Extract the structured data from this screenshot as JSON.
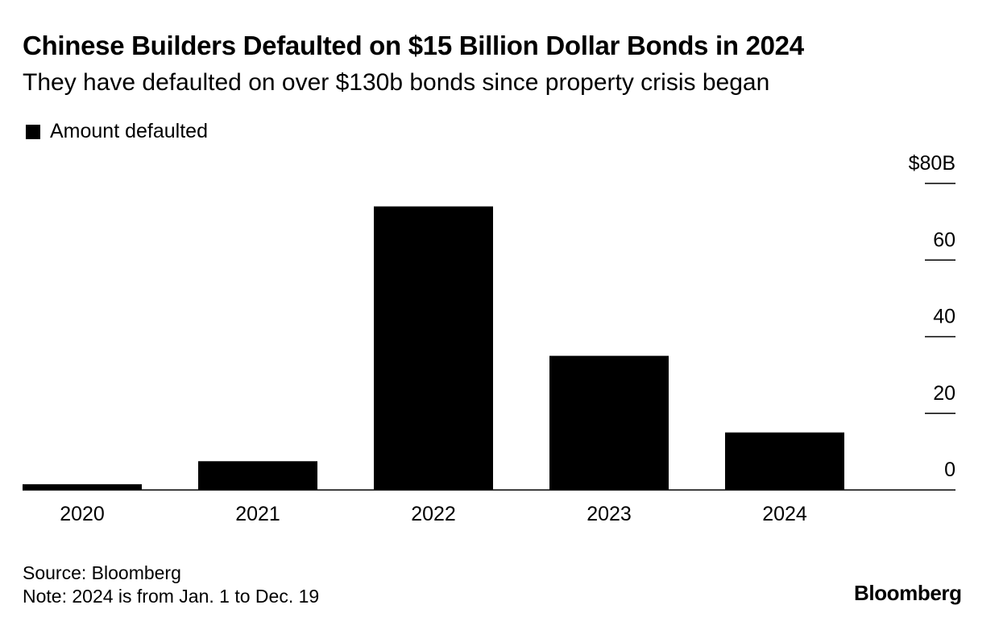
{
  "chart_data": {
    "type": "bar",
    "title": "Chinese Builders Defaulted on $15 Billion Dollar Bonds in 2024",
    "subtitle": "They have defaulted on over $130b bonds since property crisis began",
    "legend": {
      "placement": "top-left",
      "entries": [
        "Amount defaulted"
      ]
    },
    "categories": [
      "2020",
      "2021",
      "2022",
      "2023",
      "2024"
    ],
    "series": [
      {
        "name": "Amount defaulted",
        "values": [
          1.5,
          7.5,
          74,
          35,
          15
        ]
      }
    ],
    "ylim": [
      0,
      80
    ],
    "yticks": [
      0,
      20,
      40,
      60,
      80
    ],
    "ytick_labels": [
      "0",
      "20",
      "40",
      "60",
      "$80B"
    ],
    "y_axis_position": "right",
    "grid": false,
    "bar_color": "#000000"
  },
  "footer": {
    "source": "Source: Bloomberg",
    "note": "Note: 2024 is from Jan. 1 to Dec. 19"
  },
  "brand": "Bloomberg"
}
